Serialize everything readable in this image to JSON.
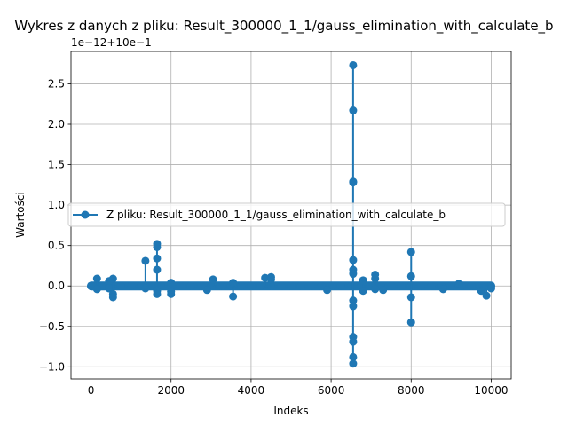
{
  "chart_data": {
    "type": "line",
    "title": "Wykres z danych z pliku: Result_300000_1_1/gauss_elimination_with_calculate_b",
    "xlabel": "Indeks",
    "ylabel": "Wartości",
    "offset_text": "1e−12+10e−1",
    "xlim": [
      -500,
      10500
    ],
    "ylim": [
      -1.15,
      2.9
    ],
    "x_ticks": [
      0,
      2000,
      4000,
      6000,
      8000,
      10000
    ],
    "x_tick_labels": [
      "0",
      "2000",
      "4000",
      "6000",
      "8000",
      "10000"
    ],
    "y_ticks": [
      -1.0,
      -0.5,
      0.0,
      0.5,
      1.0,
      1.5,
      2.0,
      2.5
    ],
    "y_tick_labels": [
      "−1.0",
      "−0.5",
      "0.0",
      "0.5",
      "1.0",
      "1.5",
      "2.0",
      "2.5"
    ],
    "grid": true,
    "legend_position": "center-left",
    "series": [
      {
        "name": "Z pliku: Result_300000_1_1/gauss_elimination_with_calculate_b",
        "color": "#1f77b4",
        "marker": "circle",
        "x_range": [
          0,
          10000
        ],
        "baseline": 0.0,
        "spikes": [
          {
            "x": 150,
            "values": [
              0.09,
              -0.04
            ]
          },
          {
            "x": 450,
            "values": [
              0.06,
              -0.03
            ]
          },
          {
            "x": 550,
            "values": [
              0.09,
              -0.1,
              -0.14
            ]
          },
          {
            "x": 1360,
            "values": [
              0.31,
              -0.03
            ]
          },
          {
            "x": 1650,
            "values": [
              0.52,
              0.48,
              0.34,
              0.2,
              -0.06,
              -0.1
            ]
          },
          {
            "x": 2000,
            "values": [
              0.04,
              -0.07,
              -0.1
            ]
          },
          {
            "x": 2900,
            "values": [
              -0.05
            ]
          },
          {
            "x": 3050,
            "values": [
              0.08
            ]
          },
          {
            "x": 3550,
            "values": [
              0.04,
              -0.13
            ]
          },
          {
            "x": 4350,
            "values": [
              0.1
            ]
          },
          {
            "x": 4500,
            "values": [
              0.11,
              0.08
            ]
          },
          {
            "x": 5900,
            "values": [
              -0.05
            ]
          },
          {
            "x": 6550,
            "values": [
              2.73,
              2.17,
              1.29,
              1.28,
              0.32,
              0.2,
              0.15,
              -0.18,
              -0.25,
              -0.63,
              -0.69,
              -0.88,
              -0.96
            ]
          },
          {
            "x": 6800,
            "values": [
              0.07,
              -0.06
            ]
          },
          {
            "x": 7100,
            "values": [
              0.14,
              0.09,
              -0.04
            ]
          },
          {
            "x": 7300,
            "values": [
              -0.05
            ]
          },
          {
            "x": 8000,
            "values": [
              0.42,
              0.12,
              -0.14,
              -0.45
            ]
          },
          {
            "x": 8800,
            "values": [
              -0.04
            ]
          },
          {
            "x": 9200,
            "values": [
              0.03
            ]
          },
          {
            "x": 9750,
            "values": [
              -0.06
            ]
          },
          {
            "x": 9880,
            "values": [
              -0.12
            ]
          },
          {
            "x": 10000,
            "values": [
              -0.03
            ]
          }
        ]
      }
    ]
  }
}
